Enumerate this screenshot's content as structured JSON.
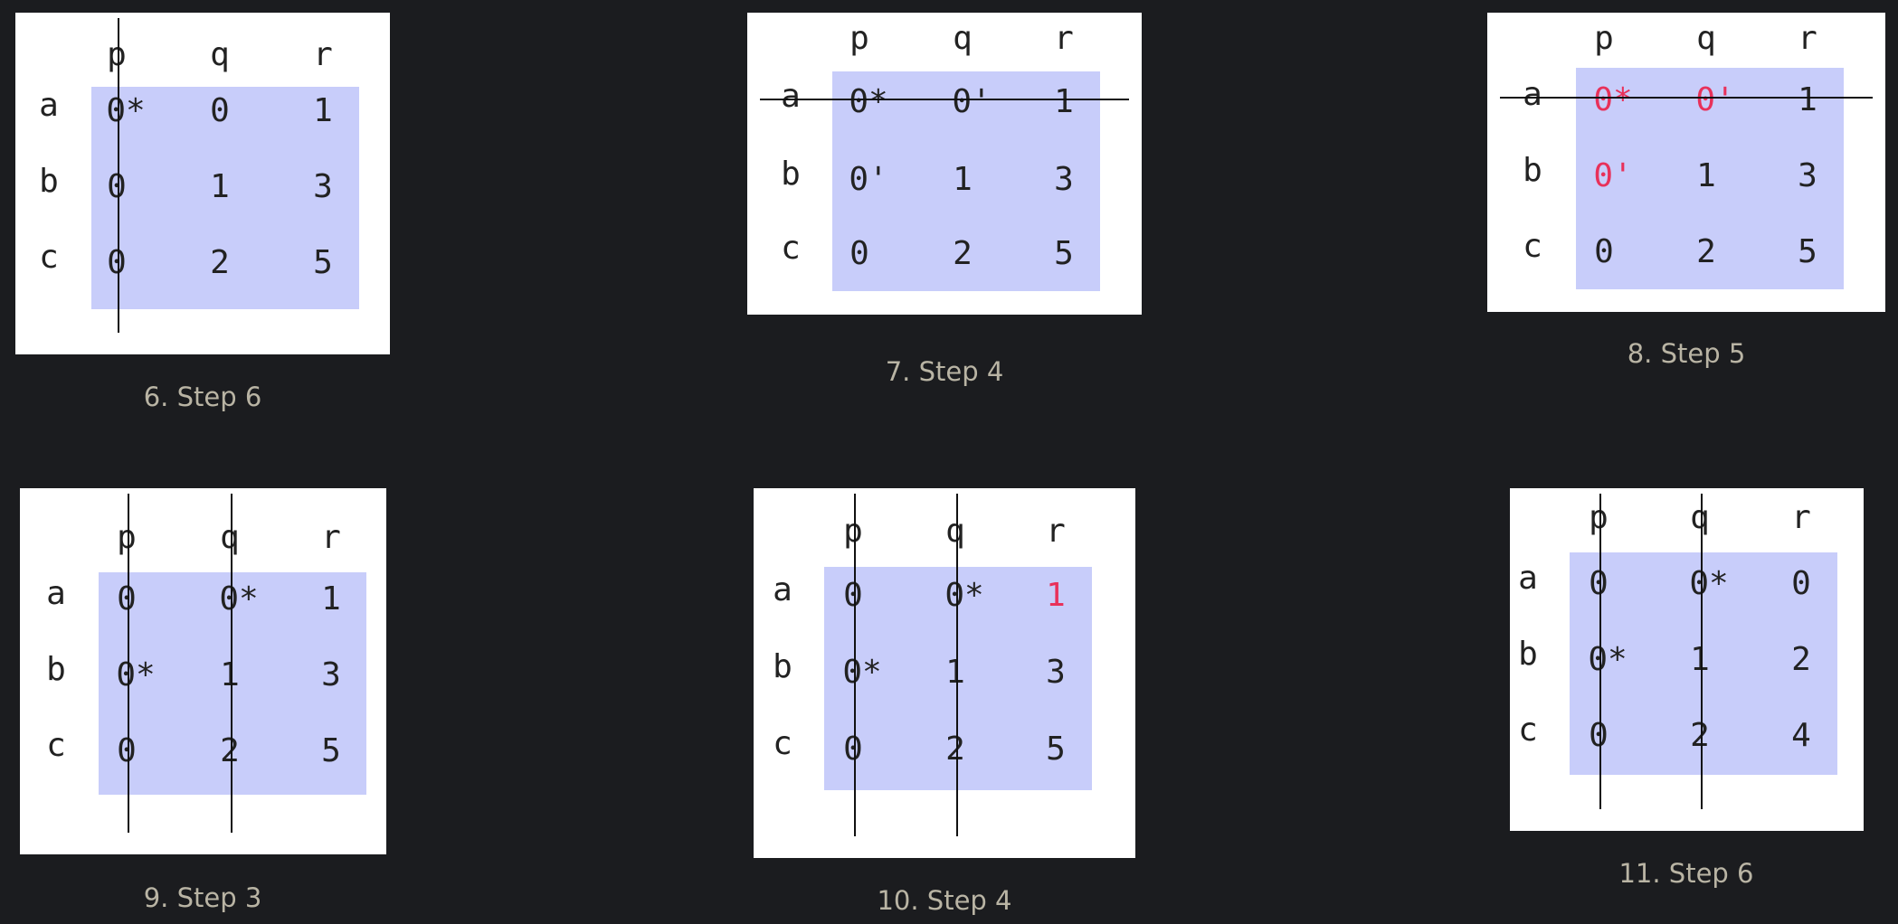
{
  "colors": {
    "background": "#1b1c1f",
    "panel": "#ffffff",
    "matrix_fill": "#c8cdfa",
    "text": "#222222",
    "highlight": "#e8315a",
    "line": "#111111",
    "caption": "#b9b4a4"
  },
  "figures": [
    {
      "caption": "6. Step 6",
      "col_headers": [
        "p",
        "q",
        "r"
      ],
      "row_headers": [
        "a",
        "b",
        "c"
      ],
      "cells": [
        [
          "0*",
          "0",
          "1"
        ],
        [
          "0",
          "1",
          "3"
        ],
        [
          "0",
          "2",
          "5"
        ]
      ],
      "highlight": [],
      "covered_rows": [],
      "covered_cols": [
        0
      ]
    },
    {
      "caption": "7. Step 4",
      "col_headers": [
        "p",
        "q",
        "r"
      ],
      "row_headers": [
        "a",
        "b",
        "c"
      ],
      "cells": [
        [
          "0*",
          "0'",
          "1"
        ],
        [
          "0'",
          "1",
          "3"
        ],
        [
          "0",
          "2",
          "5"
        ]
      ],
      "highlight": [],
      "covered_rows": [
        0
      ],
      "covered_cols": []
    },
    {
      "caption": "8. Step 5",
      "col_headers": [
        "p",
        "q",
        "r"
      ],
      "row_headers": [
        "a",
        "b",
        "c"
      ],
      "cells": [
        [
          "0*",
          "0'",
          "1"
        ],
        [
          "0'",
          "1",
          "3"
        ],
        [
          "0",
          "2",
          "5"
        ]
      ],
      "highlight": [
        [
          0,
          0
        ],
        [
          0,
          1
        ],
        [
          1,
          0
        ]
      ],
      "covered_rows": [
        0
      ],
      "covered_cols": []
    },
    {
      "caption": "9. Step 3",
      "col_headers": [
        "p",
        "q",
        "r"
      ],
      "row_headers": [
        "a",
        "b",
        "c"
      ],
      "cells": [
        [
          "0",
          "0*",
          "1"
        ],
        [
          "0*",
          "1",
          "3"
        ],
        [
          "0",
          "2",
          "5"
        ]
      ],
      "highlight": [],
      "covered_rows": [],
      "covered_cols": [
        0,
        1
      ]
    },
    {
      "caption": "10. Step 4",
      "col_headers": [
        "p",
        "q",
        "r"
      ],
      "row_headers": [
        "a",
        "b",
        "c"
      ],
      "cells": [
        [
          "0",
          "0*",
          "1"
        ],
        [
          "0*",
          "1",
          "3"
        ],
        [
          "0",
          "2",
          "5"
        ]
      ],
      "highlight": [
        [
          0,
          2
        ]
      ],
      "covered_rows": [],
      "covered_cols": [
        0,
        1
      ]
    },
    {
      "caption": "11. Step 6",
      "col_headers": [
        "p",
        "q",
        "r"
      ],
      "row_headers": [
        "a",
        "b",
        "c"
      ],
      "cells": [
        [
          "0",
          "0*",
          "0"
        ],
        [
          "0*",
          "1",
          "2"
        ],
        [
          "0",
          "2",
          "4"
        ]
      ],
      "highlight": [],
      "covered_rows": [],
      "covered_cols": [
        0,
        1
      ]
    }
  ]
}
